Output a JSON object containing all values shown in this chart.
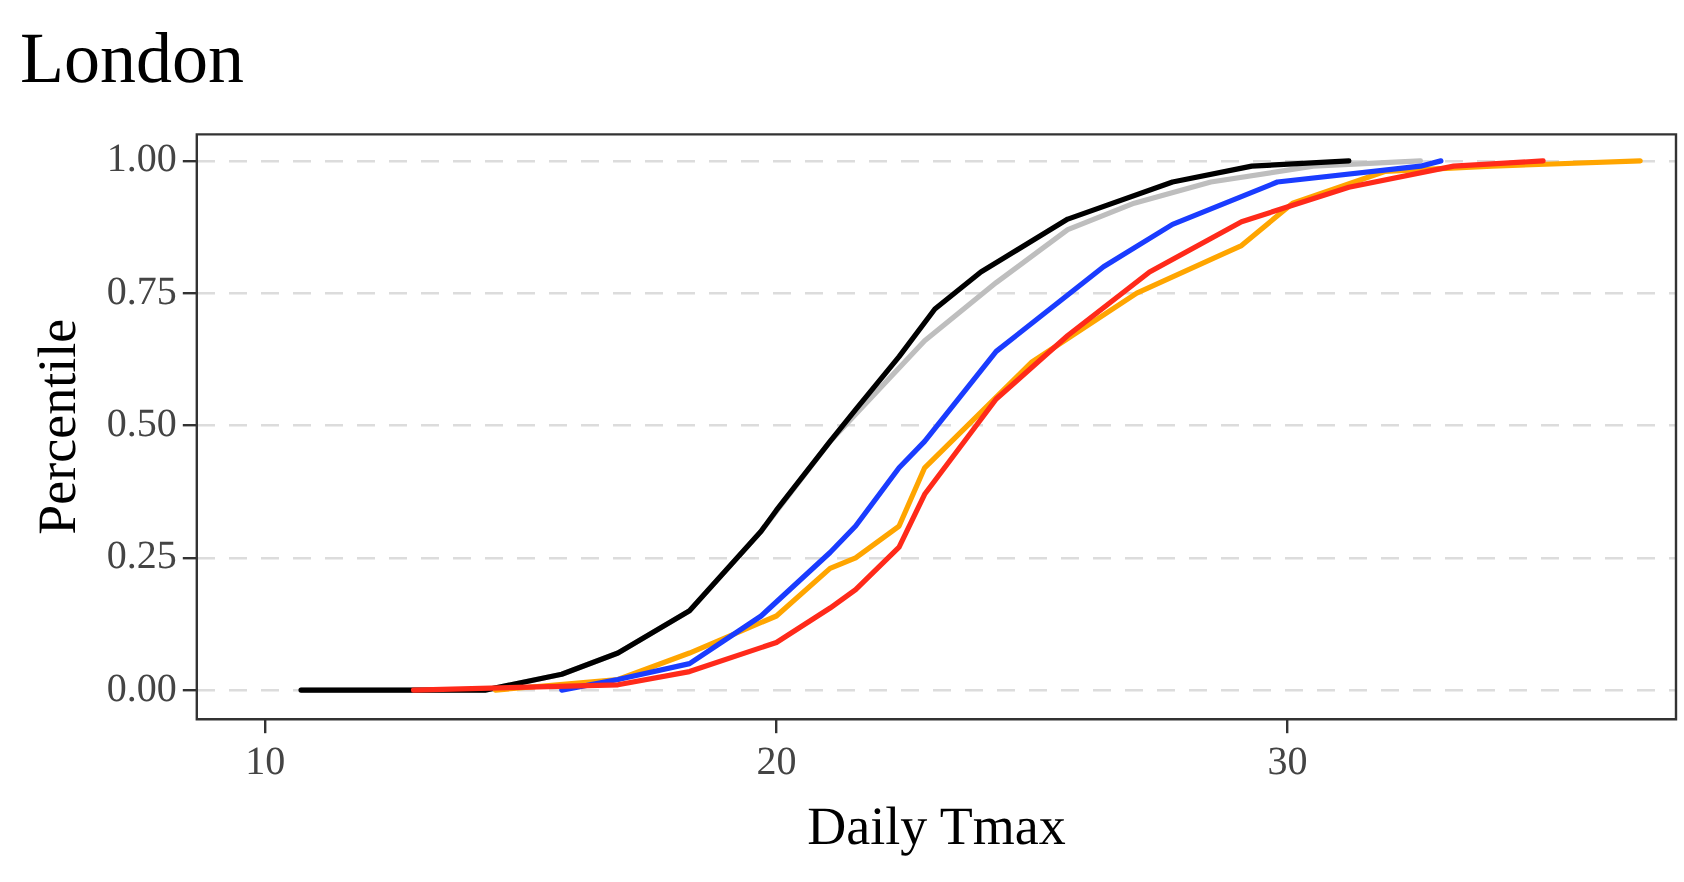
{
  "chart_data": {
    "type": "line",
    "title": "London",
    "xlabel": "Daily Tmax",
    "ylabel": "Percentile",
    "xlim": [
      8.66,
      37.6
    ],
    "xticks": [
      10,
      20,
      30
    ],
    "ylim": [
      -0.055,
      1.05
    ],
    "yticks": [
      {
        "value": 0,
        "label": "0.00"
      },
      {
        "value": 0.25,
        "label": "0.25"
      },
      {
        "value": 0.5,
        "label": "0.50"
      },
      {
        "value": 0.75,
        "label": "0.75"
      },
      {
        "value": 1,
        "label": "1.00"
      }
    ],
    "grid": true,
    "legend": false,
    "marker": "none",
    "line_style": "solid",
    "series": [
      {
        "color": "#bebebe",
        "x": [
          10.7,
          14.3,
          15.8,
          16.9,
          18.3,
          19.7,
          21.05,
          22.9,
          24.3,
          25.7,
          27.0,
          28.5,
          30.5,
          32.6
        ],
        "values": [
          0,
          0,
          0.03,
          0.07,
          0.15,
          0.3,
          0.47,
          0.66,
          0.77,
          0.87,
          0.92,
          0.96,
          0.99,
          1
        ]
      },
      {
        "color": "#000000",
        "x": [
          10.7,
          14.3,
          15.8,
          16.9,
          18.3,
          19.7,
          20,
          21.05,
          21.55,
          22.4,
          23.1,
          24.0,
          25.7,
          27.75,
          29.3,
          31.2
        ],
        "values": [
          0,
          0,
          0.03,
          0.07,
          0.15,
          0.3,
          0.34,
          0.47,
          0.53,
          0.63,
          0.72,
          0.79,
          0.89,
          0.96,
          0.99,
          1
        ]
      },
      {
        "color": "#ffa500",
        "x": [
          14.5,
          16.9,
          18.3,
          20,
          21.05,
          21.55,
          22.4,
          22.9,
          25.0,
          27.05,
          29.1,
          30.1,
          31.9,
          34.0,
          36.9
        ],
        "values": [
          0,
          0.02,
          0.07,
          0.14,
          0.23,
          0.25,
          0.31,
          0.42,
          0.62,
          0.75,
          0.84,
          0.92,
          0.98,
          0.99,
          1
        ]
      },
      {
        "color": "#1a3cff",
        "x": [
          15.8,
          16.9,
          18.3,
          19.7,
          21.05,
          21.55,
          22.4,
          22.9,
          24.3,
          26.4,
          27.75,
          29.8,
          32.6,
          33.0
        ],
        "values": [
          0,
          0.02,
          0.05,
          0.14,
          0.26,
          0.31,
          0.42,
          0.47,
          0.64,
          0.8,
          0.88,
          0.96,
          0.99,
          1
        ]
      },
      {
        "color": "#ff2a1a",
        "x": [
          12.9,
          16.9,
          18.3,
          20,
          21.05,
          21.55,
          22.4,
          22.9,
          24.3,
          25.7,
          27.3,
          29.1,
          31.2,
          33.25,
          35.0
        ],
        "values": [
          0,
          0.01,
          0.035,
          0.09,
          0.155,
          0.19,
          0.27,
          0.37,
          0.55,
          0.67,
          0.79,
          0.885,
          0.95,
          0.99,
          1
        ]
      }
    ]
  }
}
